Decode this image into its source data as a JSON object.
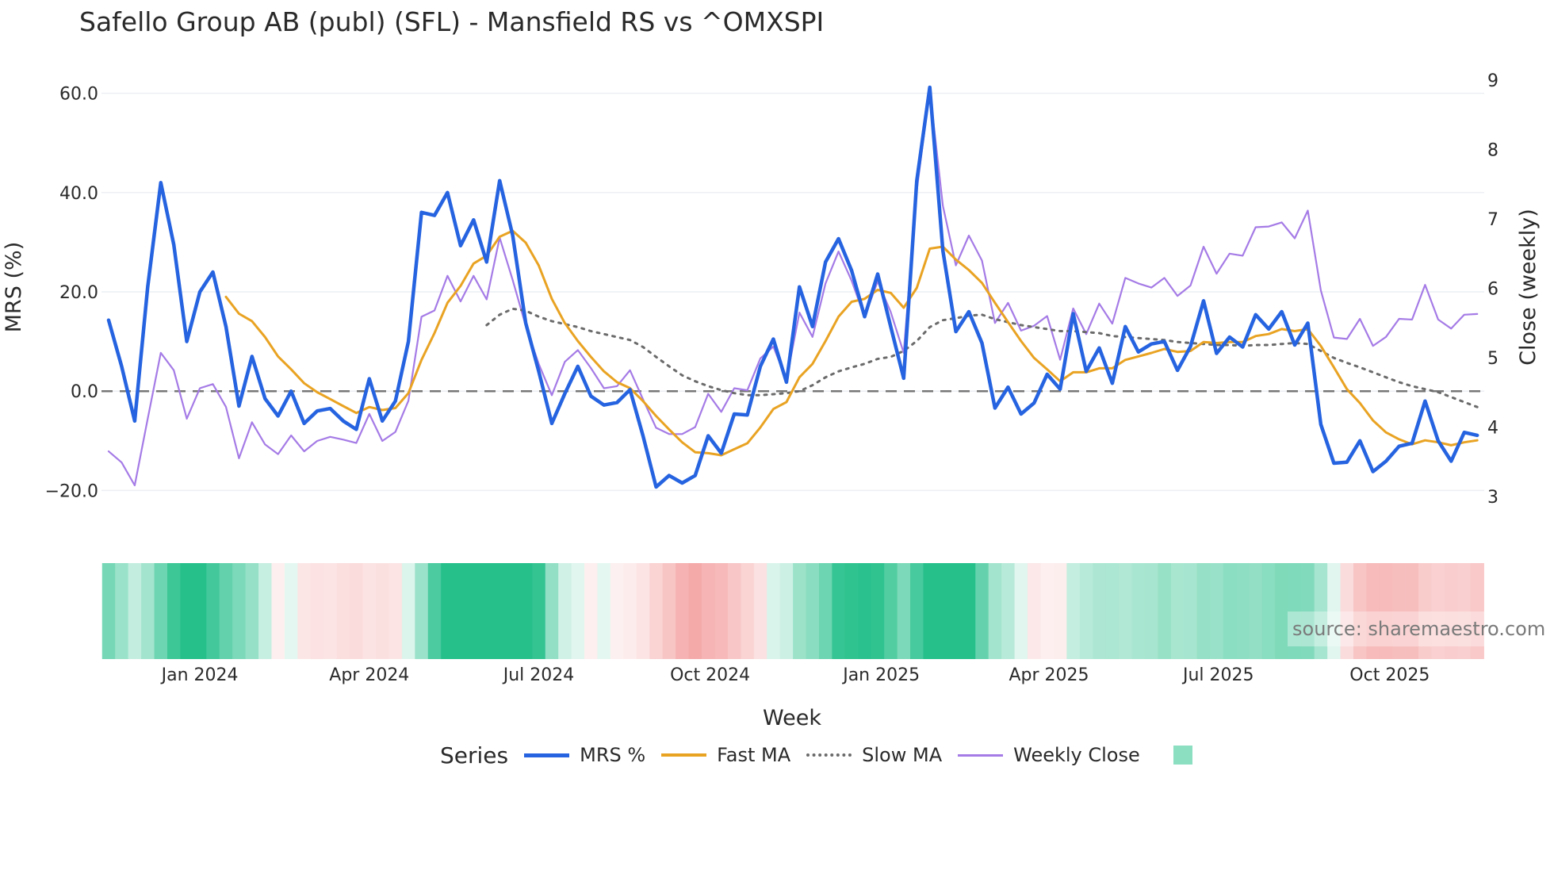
{
  "chart_data": {
    "type": "line",
    "title": "Safello Group AB (publ) (SFL) - Mansfield RS vs ^OMXSPI",
    "xlabel": "Week",
    "ylabel": "MRS (%)",
    "y2label": "Close (weekly)",
    "start_date": "2023-11-13",
    "interval_days": 7,
    "ylim": [
      -27,
      63
    ],
    "y2lim": [
      3,
      9
    ],
    "yticks": [
      "60.0",
      "40.0",
      "20.0",
      "0.0",
      "−20.0"
    ],
    "ytick_values": [
      60,
      40,
      20,
      0,
      -20
    ],
    "y2ticks": [
      "9",
      "8",
      "7",
      "6",
      "5",
      "4",
      "3"
    ],
    "y2tick_values": [
      9,
      8,
      7,
      6,
      5,
      4,
      3
    ],
    "xticks": [
      {
        "label": "Jan 2024",
        "date": "2024-01-01"
      },
      {
        "label": "Apr 2024",
        "date": "2024-04-01"
      },
      {
        "label": "Jul 2024",
        "date": "2024-07-01"
      },
      {
        "label": "Oct 2024",
        "date": "2024-10-01"
      },
      {
        "label": "Jan 2025",
        "date": "2025-01-01"
      },
      {
        "label": "Apr 2025",
        "date": "2025-04-01"
      },
      {
        "label": "Jul 2025",
        "date": "2025-07-01"
      },
      {
        "label": "Oct 2025",
        "date": "2025-10-01"
      }
    ],
    "grid": true,
    "reference_line": 0,
    "legend_title": "Series",
    "legend_position": "bottom",
    "series": [
      {
        "name": "MRS %",
        "color": "#2563e0",
        "axis": "left",
        "values": [
          14.3,
          5,
          -6,
          21,
          42,
          29.5,
          10,
          20,
          24,
          13,
          -3,
          7,
          -1.5,
          -5,
          0,
          -6.5,
          -4,
          -3.5,
          -6,
          -7.7,
          2.5,
          -6,
          -2,
          10,
          36,
          35.4,
          40,
          29.3,
          34.5,
          26,
          42.4,
          31.4,
          13.7,
          4,
          -6.5,
          -0.5,
          5,
          -1,
          -2.8,
          -2.3,
          0.3,
          -9,
          -19.3,
          -17,
          -18.5,
          -17,
          -9,
          -12.5,
          -4.6,
          -4.8,
          5,
          10.5,
          1.8,
          21,
          13,
          26,
          30.7,
          24.3,
          15,
          23.6,
          13,
          2.6,
          42.4,
          61.2,
          28.3,
          12,
          16,
          9.7,
          -3.4,
          0.8,
          -4.6,
          -2.4,
          3.4,
          0.4,
          15.6,
          4,
          8.7,
          1.6,
          13,
          7.9,
          9.5,
          10,
          4.2,
          9,
          18.2,
          7.6,
          10.9,
          8.9,
          15.4,
          12.5,
          16,
          9.3,
          13.7,
          -6.7,
          -14.5,
          -14.3,
          -10,
          -16.2,
          -14.1,
          -11.1,
          -10.5,
          -2,
          -10,
          -14.1,
          -8.3,
          -8.9
        ]
      },
      {
        "name": "Fast MA",
        "color": "#e9a323",
        "axis": "left",
        "values": [
          19,
          15.6,
          14.1,
          10.9,
          7,
          4.4,
          1.6,
          -0.2,
          -1.6,
          -3,
          -4.4,
          -3.2,
          -3.8,
          -3.4,
          -0.4,
          6.3,
          11.7,
          17.8,
          21.2,
          25.7,
          27.3,
          31.1,
          32.3,
          29.9,
          25.3,
          18.6,
          13.7,
          10.1,
          6.9,
          4,
          1.8,
          0.6,
          -2,
          -5,
          -7.7,
          -10.3,
          -12.3,
          -12.5,
          -12.9,
          -11.7,
          -10.5,
          -7.3,
          -3.6,
          -2.2,
          2.8,
          5.5,
          10.1,
          15,
          18,
          18.6,
          20.4,
          19.8,
          16.8,
          20.8,
          28.7,
          29.1,
          26.5,
          24.4,
          21.8,
          17.8,
          13.9,
          10.1,
          6.7,
          4.4,
          2,
          3.8,
          3.8,
          4.6,
          4.6,
          6.3,
          7,
          7.7,
          8.5,
          7.9,
          8.1,
          9.9,
          9.7,
          9.9,
          9.9,
          11.1,
          11.5,
          12.5,
          12.1,
          12.5,
          9.1,
          4.8,
          0.4,
          -2.4,
          -5.9,
          -8.3,
          -9.7,
          -10.7,
          -9.9,
          -10.3,
          -10.9,
          -10.3,
          -9.9
        ]
      },
      {
        "name": "Slow MA",
        "color": "#6b6b6b",
        "axis": "left",
        "values": [
          13.3,
          15.4,
          16.6,
          16.2,
          15,
          14.1,
          13.5,
          12.9,
          12.1,
          11.5,
          10.9,
          10.3,
          8.9,
          6.9,
          5,
          3.2,
          2,
          1,
          0.2,
          -0.4,
          -0.8,
          -0.8,
          -0.6,
          -0.4,
          0,
          1.2,
          2.8,
          4,
          4.8,
          5.5,
          6.5,
          6.9,
          8.1,
          10.1,
          12.9,
          14.3,
          14.7,
          15.2,
          15.4,
          14.5,
          13.9,
          13.3,
          12.9,
          12.5,
          12.1,
          12.1,
          11.9,
          11.7,
          11.1,
          10.9,
          10.7,
          10.5,
          10.3,
          9.9,
          9.7,
          9.5,
          9.3,
          9.3,
          9.1,
          9.3,
          9.3,
          9.5,
          9.7,
          9.5,
          8.1,
          6.7,
          5.7,
          4.8,
          3.8,
          2.8,
          1.8,
          1,
          0.4,
          -0.2,
          -1.2,
          -2.2,
          -3.2
        ]
      },
      {
        "name": "Weekly Close",
        "color": "#a57be6",
        "axis": "right",
        "values": [
          3.65,
          3.49,
          3.16,
          4.12,
          5.07,
          4.82,
          4.12,
          4.56,
          4.62,
          4.29,
          3.55,
          4.07,
          3.75,
          3.61,
          3.88,
          3.65,
          3.8,
          3.86,
          3.82,
          3.77,
          4.19,
          3.8,
          3.93,
          4.38,
          5.59,
          5.68,
          6.18,
          5.81,
          6.18,
          5.84,
          6.73,
          6.12,
          5.46,
          4.91,
          4.46,
          4.94,
          5.11,
          4.85,
          4.56,
          4.59,
          4.82,
          4.4,
          3.99,
          3.9,
          3.9,
          4,
          4.48,
          4.22,
          4.56,
          4.53,
          4.99,
          5.16,
          4.68,
          5.65,
          5.3,
          6.07,
          6.53,
          6.11,
          5.59,
          6.1,
          5.66,
          5.07,
          7.41,
          8.86,
          7.19,
          6.33,
          6.76,
          6.4,
          5.5,
          5.79,
          5.39,
          5.46,
          5.6,
          4.97,
          5.71,
          5.34,
          5.78,
          5.49,
          6.15,
          6.07,
          6.01,
          6.15,
          5.89,
          6.04,
          6.6,
          6.21,
          6.5,
          6.47,
          6.88,
          6.89,
          6.95,
          6.72,
          7.12,
          5.97,
          5.29,
          5.27,
          5.56,
          5.17,
          5.3,
          5.56,
          5.55,
          6.05,
          5.55,
          5.42,
          5.62,
          5.63
        ]
      }
    ],
    "heatmap_color_positive": "#26c08b",
    "heatmap_color_negative": "#f28f8f",
    "legend_swatch_color": "#8ddfc2",
    "source": "source: sharemaestro.com"
  }
}
